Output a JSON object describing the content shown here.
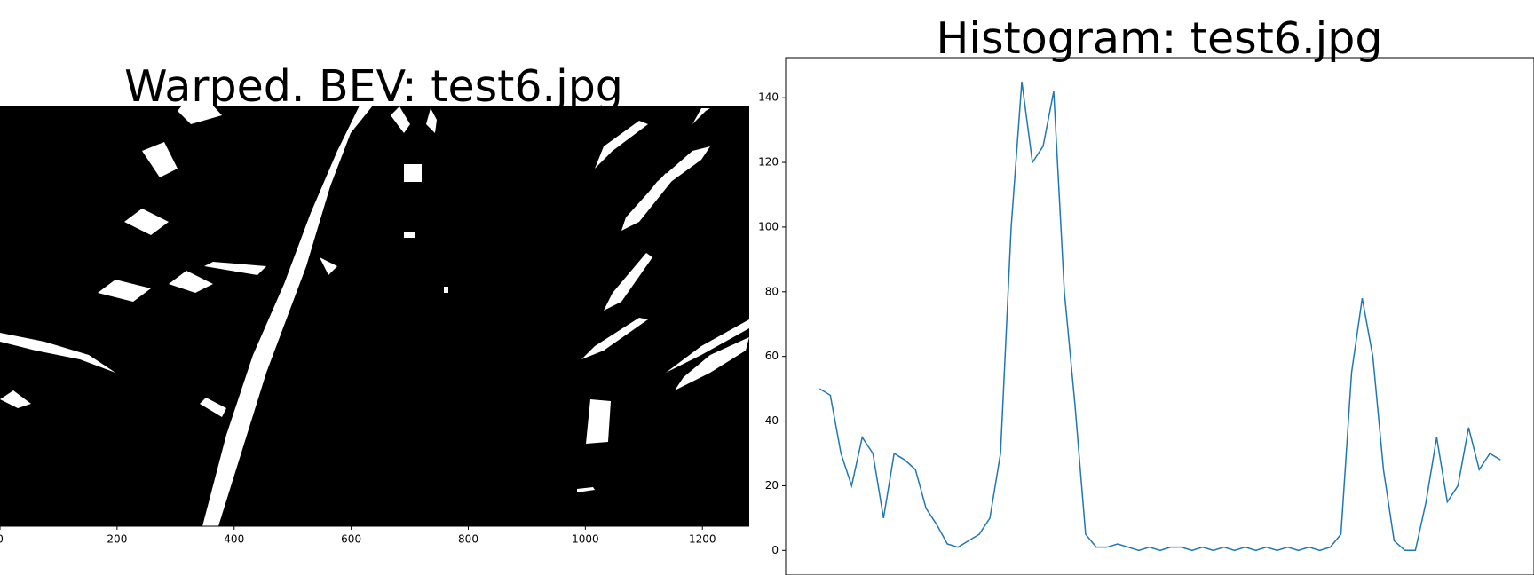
{
  "chart_data": [
    {
      "type": "image",
      "title": "Warped. BEV: test6.jpg",
      "xlim": [
        0,
        1280
      ],
      "xticks": [
        0,
        200,
        400,
        600,
        800,
        1000,
        1200
      ]
    },
    {
      "type": "line",
      "title": "Histogram: test6.jpg",
      "color": "#1f77b4",
      "x": [
        0,
        20,
        40,
        60,
        80,
        100,
        120,
        140,
        160,
        180,
        200,
        220,
        240,
        260,
        280,
        300,
        320,
        340,
        360,
        380,
        400,
        420,
        440,
        460,
        480,
        500,
        520,
        540,
        560,
        580,
        600,
        620,
        640,
        660,
        680,
        700,
        720,
        740,
        760,
        780,
        800,
        820,
        840,
        860,
        880,
        900,
        920,
        940,
        960,
        980,
        1000,
        1020,
        1040,
        1060,
        1080,
        1100,
        1120,
        1140,
        1160,
        1180,
        1200,
        1220,
        1240,
        1260,
        1280
      ],
      "values": [
        50,
        48,
        30,
        20,
        35,
        30,
        10,
        30,
        28,
        25,
        13,
        8,
        2,
        1,
        3,
        5,
        10,
        30,
        100,
        145,
        120,
        125,
        142,
        80,
        45,
        5,
        1,
        1,
        2,
        1,
        0,
        1,
        0,
        1,
        1,
        0,
        1,
        0,
        1,
        0,
        1,
        0,
        1,
        0,
        1,
        0,
        1,
        0,
        1,
        5,
        55,
        78,
        60,
        25,
        3,
        0,
        0,
        15,
        35,
        15,
        20,
        38,
        25,
        30,
        28
      ],
      "xlim": [
        -64,
        1343
      ],
      "ylim": [
        -7.6,
        152.4
      ],
      "yticks": [
        0,
        20,
        40,
        60,
        80,
        100,
        120,
        140
      ]
    }
  ]
}
